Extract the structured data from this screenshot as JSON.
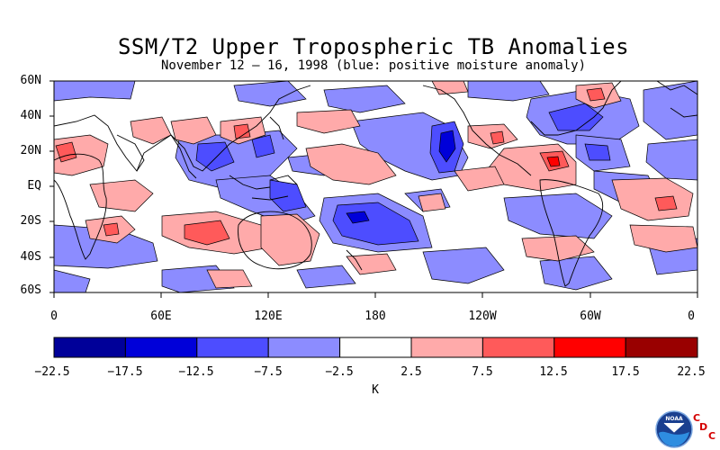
{
  "title": "SSM/T2 Upper Tropospheric TB Anomalies",
  "subtitle": "November 12 – 16, 1998 (blue: positive moisture anomaly)",
  "map": {
    "lat_labels": [
      "60N",
      "40N",
      "20N",
      "EQ",
      "20S",
      "40S",
      "60S"
    ],
    "lon_labels": [
      "0",
      "60E",
      "120E",
      "180",
      "120W",
      "60W",
      "0"
    ],
    "lon_range": [
      0,
      360
    ],
    "lat_range": [
      -60,
      60
    ],
    "projection": "cylindrical equidistant"
  },
  "colorbar": {
    "tick_labels": [
      "-22.5",
      "-17.5",
      "-12.5",
      "-7.5",
      "-2.5",
      "2.5",
      "7.5",
      "12.5",
      "17.5",
      "22.5"
    ],
    "unit": "K",
    "colors": [
      "#000099",
      "#0000d9",
      "#4d4dff",
      "#8c8cff",
      "#ffffff",
      "#ffaaaa",
      "#ff5a5a",
      "#ff0000",
      "#990000"
    ]
  },
  "logos": {
    "noaa_text": "NOAA",
    "cdc_letters": [
      "C",
      "D",
      "C"
    ]
  }
}
